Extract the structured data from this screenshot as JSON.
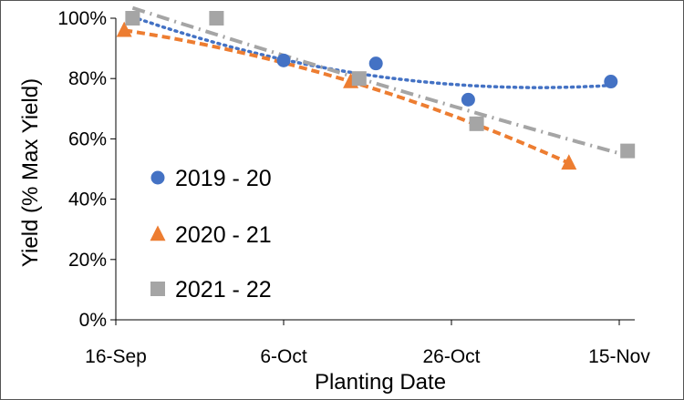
{
  "chart_data": {
    "type": "scatter",
    "title": "",
    "xlabel": "Planting Date",
    "ylabel": "Yield (% Max Yield)",
    "x_ticks": [
      "16-Sep",
      "6-Oct",
      "26-Oct",
      "15-Nov"
    ],
    "y_ticks": [
      "0%",
      "20%",
      "40%",
      "60%",
      "80%",
      "100%"
    ],
    "xlim": [
      "2019-09-16",
      "2019-11-15"
    ],
    "ylim": [
      0,
      100
    ],
    "grid": false,
    "legend_position": "left",
    "series": [
      {
        "name": "2019 - 20",
        "marker": "circle",
        "color": "#4472C4",
        "trendline": "polynomial",
        "trend_style": "dotted",
        "points": [
          {
            "x": "2019-09-18",
            "y": 100
          },
          {
            "x": "2019-10-06",
            "y": 86
          },
          {
            "x": "2019-10-17",
            "y": 85
          },
          {
            "x": "2019-10-28",
            "y": 73
          },
          {
            "x": "2019-11-14",
            "y": 79
          }
        ]
      },
      {
        "name": "2020 - 21",
        "marker": "triangle",
        "color": "#ED7D31",
        "trendline": "polynomial",
        "trend_style": "dashed",
        "points": [
          {
            "x": "2019-09-17",
            "y": 96
          },
          {
            "x": "2019-10-14",
            "y": 79
          },
          {
            "x": "2019-11-09",
            "y": 52
          }
        ]
      },
      {
        "name": "2021 - 22",
        "marker": "square",
        "color": "#A5A5A5",
        "trendline": "polynomial",
        "trend_style": "dash-dot",
        "points": [
          {
            "x": "2019-09-18",
            "y": 100
          },
          {
            "x": "2019-09-28",
            "y": 100
          },
          {
            "x": "2019-10-15",
            "y": 80
          },
          {
            "x": "2019-10-29",
            "y": 65
          },
          {
            "x": "2019-11-16",
            "y": 56
          }
        ]
      }
    ]
  }
}
